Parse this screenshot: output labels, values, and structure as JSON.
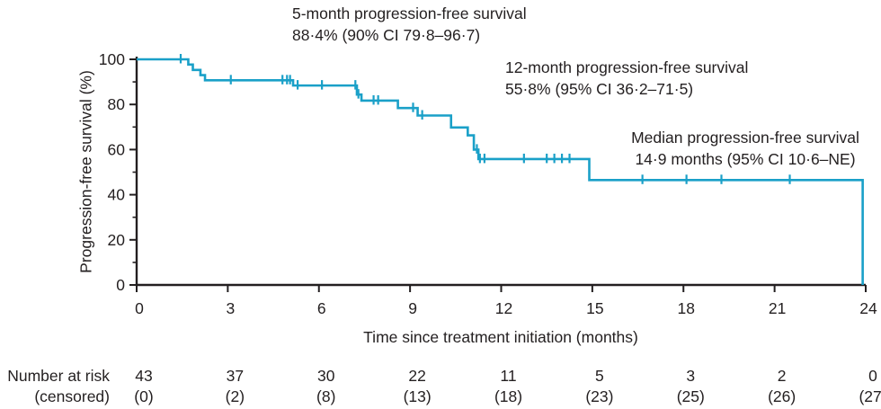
{
  "annotations": {
    "five_month": {
      "line1": "5-month progression-free survival",
      "line2": "88·4% (90% CI 79·8–96·7)"
    },
    "twelve_month": {
      "line1": "12-month progression-free survival",
      "line2": "55·8% (95% CI 36·2–71·5)"
    },
    "median": {
      "line1": "Median progression-free survival",
      "line2": "14·9 months (95% CI 10·6–NE)"
    }
  },
  "chart_data": {
    "type": "line",
    "subtype": "kaplan-meier-step",
    "xlabel": "Time since treatment initiation (months)",
    "ylabel": "Progression-free survival (%)",
    "xlim": [
      0,
      24
    ],
    "ylim": [
      0,
      100
    ],
    "xticks": [
      0,
      3,
      6,
      9,
      12,
      15,
      18,
      21,
      24
    ],
    "yticks": [
      0,
      20,
      40,
      60,
      80,
      100
    ],
    "y_minor_ticks": [
      10,
      30,
      50,
      70,
      90
    ],
    "grid": false,
    "legend": "none",
    "line_color": "#1AA0C8",
    "axis_color": "#231f20",
    "series": [
      {
        "name": "Progression-free survival",
        "step_points": [
          [
            0,
            100
          ],
          [
            1.7,
            97.7
          ],
          [
            1.85,
            95.3
          ],
          [
            2.1,
            93.0
          ],
          [
            2.25,
            90.7
          ],
          [
            5.15,
            88.4
          ],
          [
            7.25,
            84.4
          ],
          [
            7.4,
            81.7
          ],
          [
            8.6,
            78.4
          ],
          [
            9.25,
            75.1
          ],
          [
            10.35,
            69.8
          ],
          [
            10.9,
            66.3
          ],
          [
            11.1,
            60.0
          ],
          [
            11.25,
            55.8
          ],
          [
            14.9,
            46.5
          ],
          [
            23.9,
            0
          ]
        ],
        "censor_marks": [
          [
            1.45,
            100
          ],
          [
            3.1,
            90.7
          ],
          [
            4.8,
            90.7
          ],
          [
            4.95,
            90.7
          ],
          [
            5.05,
            90.7
          ],
          [
            5.3,
            88.4
          ],
          [
            6.1,
            88.4
          ],
          [
            7.2,
            88.4
          ],
          [
            7.3,
            84.4
          ],
          [
            7.8,
            81.7
          ],
          [
            7.95,
            81.7
          ],
          [
            9.1,
            78.4
          ],
          [
            9.4,
            75.1
          ],
          [
            11.2,
            60.0
          ],
          [
            11.3,
            55.8
          ],
          [
            11.45,
            55.8
          ],
          [
            12.75,
            55.8
          ],
          [
            13.5,
            55.8
          ],
          [
            13.75,
            55.8
          ],
          [
            14.0,
            55.8
          ],
          [
            14.25,
            55.8
          ],
          [
            16.65,
            46.5
          ],
          [
            18.1,
            46.5
          ],
          [
            19.25,
            46.5
          ],
          [
            21.5,
            46.5
          ]
        ]
      }
    ],
    "number_at_risk": {
      "row1_label": "Number at risk",
      "row2_label": "(censored)",
      "times": [
        0,
        3,
        6,
        9,
        12,
        15,
        18,
        21,
        24
      ],
      "at_risk": [
        "43",
        "37",
        "30",
        "22",
        "11",
        "5",
        "3",
        "2",
        "0"
      ],
      "censored": [
        "(0)",
        "(2)",
        "(8)",
        "(13)",
        "(18)",
        "(23)",
        "(25)",
        "(26)",
        "(27)"
      ]
    }
  }
}
